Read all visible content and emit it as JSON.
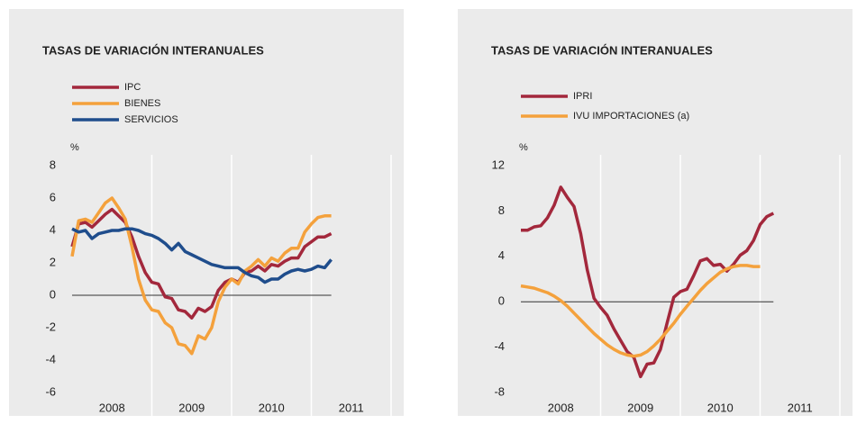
{
  "chart_data": [
    {
      "type": "line",
      "title": "TASAS DE VARIACIÓN INTERANUALES",
      "y_unit": "%",
      "xlim": [
        2008,
        2012
      ],
      "xticks": [
        {
          "value": 2008.5,
          "label": "2008"
        },
        {
          "value": 2009.5,
          "label": "2009"
        },
        {
          "value": 2010.5,
          "label": "2010"
        },
        {
          "value": 2011.5,
          "label": "2011"
        }
      ],
      "xgrid": [
        2009,
        2010,
        2011,
        2012
      ],
      "ylim": [
        -6,
        8
      ],
      "yticks": [
        -6,
        -4,
        -2,
        0,
        2,
        4,
        6,
        8
      ],
      "x": [
        2008,
        2008.083,
        2008.167,
        2008.25,
        2008.333,
        2008.417,
        2008.5,
        2008.583,
        2008.667,
        2008.75,
        2008.833,
        2008.917,
        2009,
        2009.083,
        2009.167,
        2009.25,
        2009.333,
        2009.417,
        2009.5,
        2009.583,
        2009.667,
        2009.75,
        2009.833,
        2009.917,
        2010,
        2010.083,
        2010.167,
        2010.25,
        2010.333,
        2010.417,
        2010.5,
        2010.583,
        2010.667,
        2010.75,
        2010.833,
        2010.917,
        2011,
        2011.083,
        2011.167,
        2011.25
      ],
      "series": [
        {
          "name": "IPC",
          "color": "#a3283c",
          "values": [
            3.0,
            4.4,
            4.5,
            4.2,
            4.6,
            5.0,
            5.3,
            4.9,
            4.5,
            3.6,
            2.4,
            1.4,
            0.8,
            0.7,
            -0.1,
            -0.2,
            -0.9,
            -1.0,
            -1.4,
            -0.8,
            -1.0,
            -0.7,
            0.3,
            0.8,
            1.0,
            0.8,
            1.4,
            1.5,
            1.8,
            1.5,
            1.9,
            1.8,
            2.1,
            2.3,
            2.3,
            3.0,
            3.3,
            3.6,
            3.6,
            3.8
          ]
        },
        {
          "name": "BIENES",
          "color": "#f4a13c",
          "values": [
            2.4,
            4.6,
            4.7,
            4.5,
            5.1,
            5.7,
            6.0,
            5.4,
            4.7,
            3.0,
            1.0,
            -0.3,
            -0.9,
            -1.0,
            -1.7,
            -2.0,
            -3.0,
            -3.1,
            -3.6,
            -2.5,
            -2.7,
            -2.0,
            -0.4,
            0.5,
            1.0,
            0.7,
            1.5,
            1.8,
            2.2,
            1.8,
            2.3,
            2.1,
            2.6,
            2.9,
            2.9,
            3.9,
            4.4,
            4.8,
            4.9,
            4.9
          ]
        },
        {
          "name": "SERVICIOS",
          "color": "#1f4d8c",
          "values": [
            4.1,
            3.9,
            4.0,
            3.5,
            3.8,
            3.9,
            4.0,
            4.0,
            4.1,
            4.1,
            4.0,
            3.8,
            3.7,
            3.5,
            3.2,
            2.8,
            3.2,
            2.7,
            2.5,
            2.3,
            2.1,
            1.9,
            1.8,
            1.7,
            1.7,
            1.7,
            1.4,
            1.2,
            1.1,
            0.8,
            1.0,
            1.0,
            1.3,
            1.5,
            1.6,
            1.5,
            1.6,
            1.8,
            1.7,
            2.2
          ]
        }
      ]
    },
    {
      "type": "line",
      "title": "TASAS DE VARIACIÓN INTERANUALES",
      "y_unit": "%",
      "xlim": [
        2008,
        2012
      ],
      "xticks": [
        {
          "value": 2008.5,
          "label": "2008"
        },
        {
          "value": 2009.5,
          "label": "2009"
        },
        {
          "value": 2010.5,
          "label": "2010"
        },
        {
          "value": 2011.5,
          "label": "2011"
        }
      ],
      "xgrid": [
        2009,
        2010,
        2011,
        2012
      ],
      "ylim": [
        -8,
        12
      ],
      "yticks": [
        -8,
        -4,
        0,
        4,
        8,
        12
      ],
      "x": [
        2008,
        2008.083,
        2008.167,
        2008.25,
        2008.333,
        2008.417,
        2008.5,
        2008.583,
        2008.667,
        2008.75,
        2008.833,
        2008.917,
        2009,
        2009.083,
        2009.167,
        2009.25,
        2009.333,
        2009.417,
        2009.5,
        2009.583,
        2009.667,
        2009.75,
        2009.833,
        2009.917,
        2010,
        2010.083,
        2010.167,
        2010.25,
        2010.333,
        2010.417,
        2010.5,
        2010.583,
        2010.667,
        2010.75,
        2010.833,
        2010.917,
        2011,
        2011.083,
        2011.167
      ],
      "series": [
        {
          "name": "IPRI",
          "color": "#a3283c",
          "values": [
            6.3,
            6.3,
            6.6,
            6.7,
            7.4,
            8.5,
            10.1,
            9.2,
            8.4,
            6.0,
            2.8,
            0.3,
            -0.5,
            -1.2,
            -2.4,
            -3.4,
            -4.4,
            -4.9,
            -6.6,
            -5.5,
            -5.4,
            -4.2,
            -1.9,
            0.4,
            0.9,
            1.1,
            2.3,
            3.6,
            3.8,
            3.2,
            3.3,
            2.7,
            3.3,
            4.1,
            4.5,
            5.4,
            6.8,
            7.5,
            7.8
          ]
        },
        {
          "name": "IVU IMPORTACIONES (a)",
          "color": "#f4a13c",
          "values": [
            1.4,
            1.3,
            1.2,
            1.0,
            0.8,
            0.5,
            0.1,
            -0.4,
            -1.0,
            -1.6,
            -2.2,
            -2.8,
            -3.3,
            -3.8,
            -4.2,
            -4.5,
            -4.7,
            -4.8,
            -4.7,
            -4.4,
            -3.9,
            -3.3,
            -2.6,
            -1.9,
            -1.1,
            -0.4,
            0.3,
            1.0,
            1.6,
            2.1,
            2.6,
            2.9,
            3.1,
            3.2,
            3.2,
            3.1,
            3.1,
            null,
            null
          ]
        }
      ]
    }
  ]
}
